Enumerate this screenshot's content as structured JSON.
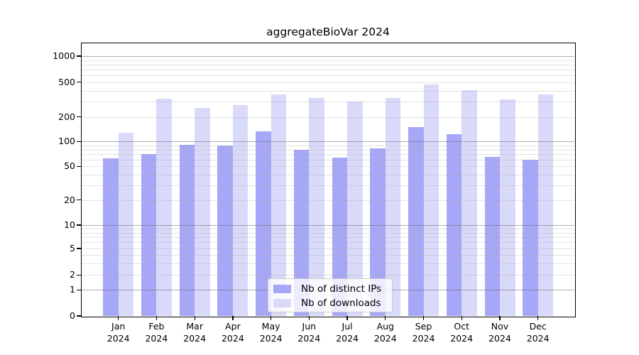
{
  "chart_data": {
    "type": "bar",
    "title": "aggregateBioVar 2024",
    "categories": [
      "Jan",
      "Feb",
      "Mar",
      "Apr",
      "May",
      "Jun",
      "Jul",
      "Aug",
      "Sep",
      "Oct",
      "Nov",
      "Dec"
    ],
    "category_year": "2024",
    "series": [
      {
        "name": "Nb of distinct IPs",
        "color": "#a7a7f7",
        "values": [
          63,
          70,
          91,
          89,
          133,
          80,
          64,
          83,
          150,
          122,
          65,
          60
        ]
      },
      {
        "name": "Nb of downloads",
        "color": "#d9d9fa",
        "values": [
          128,
          325,
          255,
          275,
          363,
          328,
          300,
          327,
          466,
          406,
          317,
          359
        ]
      }
    ],
    "yaxis": {
      "scale": "log-like (0 baseline, log decades above 1)",
      "ticks": [
        0,
        1,
        2,
        5,
        10,
        20,
        50,
        100,
        200,
        500,
        1000
      ],
      "range": [
        0,
        1400
      ]
    },
    "xaxis": {
      "tick_format": "Month over year, two lines"
    },
    "legend": {
      "position": "inside bottom-center",
      "entries": [
        "Nb of distinct IPs",
        "Nb of downloads"
      ]
    },
    "grid": {
      "major_lines_at": [
        1,
        10,
        100,
        1000
      ],
      "minor_lines": "2-9 within each decade from 1 to 1000"
    }
  }
}
